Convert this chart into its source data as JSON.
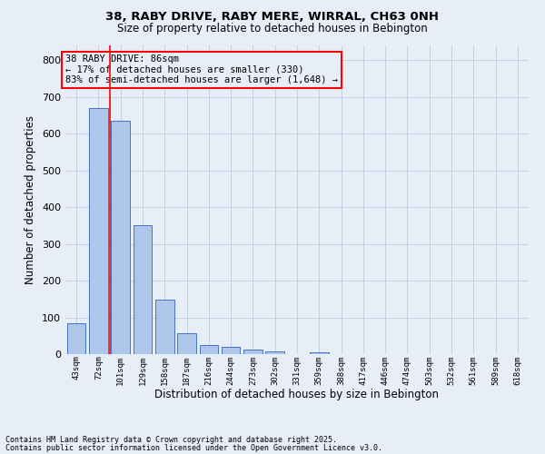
{
  "title1": "38, RABY DRIVE, RABY MERE, WIRRAL, CH63 0NH",
  "title2": "Size of property relative to detached houses in Bebington",
  "xlabel": "Distribution of detached houses by size in Bebington",
  "ylabel": "Number of detached properties",
  "categories": [
    "43sqm",
    "72sqm",
    "101sqm",
    "129sqm",
    "158sqm",
    "187sqm",
    "216sqm",
    "244sqm",
    "273sqm",
    "302sqm",
    "331sqm",
    "359sqm",
    "388sqm",
    "417sqm",
    "446sqm",
    "474sqm",
    "503sqm",
    "532sqm",
    "561sqm",
    "589sqm",
    "618sqm"
  ],
  "values": [
    85,
    670,
    635,
    350,
    148,
    58,
    25,
    20,
    13,
    8,
    0,
    5,
    0,
    0,
    0,
    0,
    0,
    0,
    0,
    0,
    0
  ],
  "bar_color": "#aec6e8",
  "bar_edge_color": "#4472c4",
  "ylim": [
    0,
    840
  ],
  "yticks": [
    0,
    100,
    200,
    300,
    400,
    500,
    600,
    700,
    800
  ],
  "annotation_box_text": "38 RABY DRIVE: 86sqm\n← 17% of detached houses are smaller (330)\n83% of semi-detached houses are larger (1,648) →",
  "footnote1": "Contains HM Land Registry data © Crown copyright and database right 2025.",
  "footnote2": "Contains public sector information licensed under the Open Government Licence v3.0.",
  "background_color": "#e8eef8",
  "grid_color": "#c8d0e0",
  "red_line_x": 1.5
}
